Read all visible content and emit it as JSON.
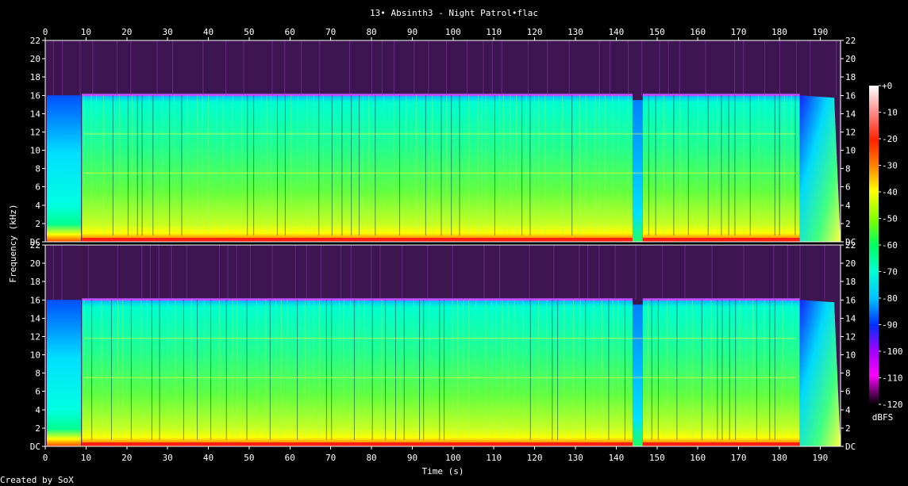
{
  "chart_data": {
    "type": "heatmap",
    "title": "13• Absinth3 - Night Patrol•flac",
    "xlabel": "Time (s)",
    "ylabel": "Frequency (kHz)",
    "colorbar_label": "dBFS",
    "credit": "Created by SoX",
    "xlim": [
      0,
      195
    ],
    "ylim": [
      0,
      22
    ],
    "x_ticks": [
      0,
      10,
      20,
      30,
      40,
      50,
      60,
      70,
      80,
      90,
      100,
      110,
      120,
      130,
      140,
      150,
      160,
      170,
      180,
      190
    ],
    "y_ticks": [
      {
        "value": 0,
        "label": "DC"
      },
      {
        "value": 2,
        "label": "2"
      },
      {
        "value": 4,
        "label": "4"
      },
      {
        "value": 6,
        "label": "6"
      },
      {
        "value": 8,
        "label": "8"
      },
      {
        "value": 10,
        "label": "10"
      },
      {
        "value": 12,
        "label": "12"
      },
      {
        "value": 14,
        "label": "14"
      },
      {
        "value": 16,
        "label": "16"
      },
      {
        "value": 18,
        "label": "18"
      },
      {
        "value": 20,
        "label": "20"
      },
      {
        "value": 22,
        "label": "22"
      }
    ],
    "colorbar_ticks": [
      "+0",
      "-10",
      "-20",
      "-30",
      "-40",
      "-50",
      "-60",
      "-70",
      "-80",
      "-90",
      "-100",
      "-110",
      "-120"
    ],
    "colorbar_range": [
      0,
      -120
    ],
    "channels": [
      "left",
      "right"
    ],
    "lowpass_cutoff_khz": 16,
    "segments": [
      {
        "start": 0,
        "end": 9,
        "kind": "quiet-intro"
      },
      {
        "start": 9,
        "end": 144,
        "kind": "music"
      },
      {
        "start": 144,
        "end": 146.5,
        "kind": "dip"
      },
      {
        "start": 146.5,
        "end": 185,
        "kind": "music"
      },
      {
        "start": 185,
        "end": 195,
        "kind": "fade-out"
      }
    ]
  },
  "colors": {
    "background": "#000000",
    "noise_floor": "#3d1550",
    "band_edge": "#c050ff",
    "high": "#ff2010",
    "mid": "#ffff00",
    "low": "#00ff80"
  }
}
